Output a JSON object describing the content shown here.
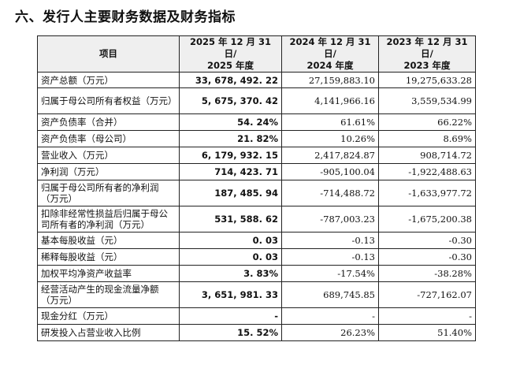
{
  "heading": "六、发行人主要财务数据及财务指标",
  "columns": {
    "item": "项目",
    "y2025_line1": "2025 年 12 月 31 日/",
    "y2025_line2": "2025 年度",
    "y2024_line1": "2024 年 12 月 31 日/",
    "y2024_line2": "2024 年度",
    "y2023_line1": "2023 年 12 月 31 日/",
    "y2023_line2": "2023 年度"
  },
  "rows": [
    {
      "label": "资产总额（万元）",
      "v2025": "33, 678, 492. 22",
      "v2024": "27,159,883.10",
      "v2023": "19,275,633.28"
    },
    {
      "label": "归属于母公司所有者权益（万元）",
      "v2025": "5, 675, 370. 42",
      "v2024": "4,141,966.16",
      "v2023": "3,559,534.99"
    },
    {
      "label": "资产负债率（合并）",
      "v2025": "54. 24%",
      "v2024": "61.61%",
      "v2023": "66.22%"
    },
    {
      "label": "资产负债率（母公司）",
      "v2025": "21. 82%",
      "v2024": "10.26%",
      "v2023": "8.69%"
    },
    {
      "label": "营业收入（万元）",
      "v2025": "6, 179, 932. 15",
      "v2024": "2,417,824.87",
      "v2023": "908,714.72"
    },
    {
      "label": "净利润（万元）",
      "v2025": "714, 423. 71",
      "v2024": "-905,100.04",
      "v2023": "-1,922,488.63"
    },
    {
      "label": "归属于母公司所有者的净利润（万元）",
      "v2025": "187, 485. 94",
      "v2024": "-714,488.72",
      "v2023": "-1,633,977.72"
    },
    {
      "label": "扣除非经常性损益后归属于母公司所有者的净利润（万元）",
      "v2025": "531, 588. 62",
      "v2024": "-787,003.23",
      "v2023": "-1,675,200.38"
    },
    {
      "label": "基本每股收益（元）",
      "v2025": "0. 03",
      "v2024": "-0.13",
      "v2023": "-0.30"
    },
    {
      "label": "稀释每股收益（元）",
      "v2025": "0. 03",
      "v2024": "-0.13",
      "v2023": "-0.30"
    },
    {
      "label": "加权平均净资产收益率",
      "v2025": "3. 83%",
      "v2024": "-17.54%",
      "v2023": "-38.28%"
    },
    {
      "label": "经营活动产生的现金流量净额（万元）",
      "v2025": "3, 651, 981. 33",
      "v2024": "689,745.85",
      "v2023": "-727,162.07"
    },
    {
      "label": "现金分红（万元）",
      "v2025": "-",
      "v2024": "-",
      "v2023": "-"
    },
    {
      "label": "研发投入占营业收入比例",
      "v2025": "15. 52%",
      "v2024": "26.23%",
      "v2023": "51.40%"
    }
  ]
}
